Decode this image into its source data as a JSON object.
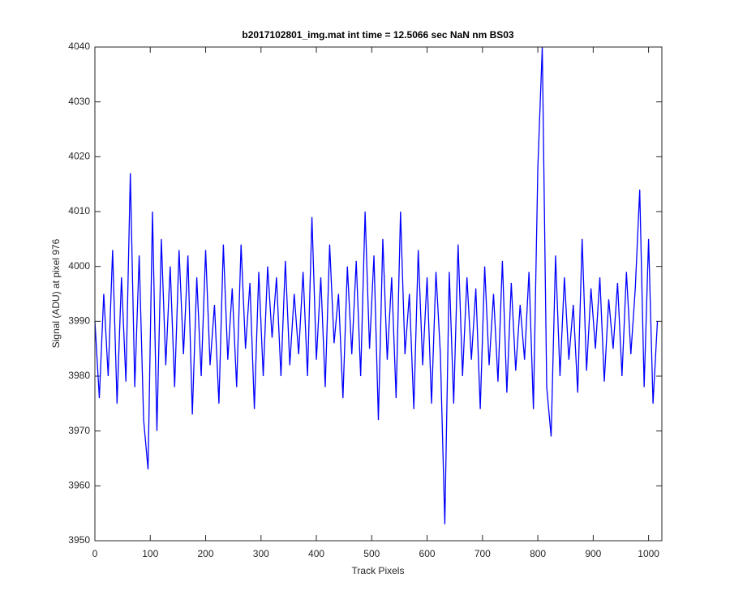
{
  "chart_data": {
    "type": "line",
    "title": "b2017102801_img.mat int time = 12.5066 sec  NaN nm BS03",
    "xlabel": "Track Pixels",
    "ylabel": "Signal (ADU) at pixel 976",
    "xlim": [
      0,
      1024
    ],
    "xticks": [
      0,
      100,
      200,
      300,
      400,
      500,
      600,
      700,
      800,
      900,
      1000
    ],
    "ylim": [
      3950,
      4040
    ],
    "yticks": [
      3950,
      3960,
      3970,
      3980,
      3990,
      4000,
      4010,
      4020,
      4030,
      4040
    ],
    "grid": false,
    "x": [
      0,
      8,
      16,
      24,
      32,
      40,
      48,
      56,
      64,
      72,
      80,
      88,
      96,
      104,
      112,
      120,
      128,
      136,
      144,
      152,
      160,
      168,
      176,
      184,
      192,
      200,
      208,
      216,
      224,
      232,
      240,
      248,
      256,
      264,
      272,
      280,
      288,
      296,
      304,
      312,
      320,
      328,
      336,
      344,
      352,
      360,
      368,
      376,
      384,
      392,
      400,
      408,
      416,
      424,
      432,
      440,
      448,
      456,
      464,
      472,
      480,
      488,
      496,
      504,
      512,
      520,
      528,
      536,
      544,
      552,
      560,
      568,
      576,
      584,
      592,
      600,
      608,
      616,
      624,
      632,
      640,
      648,
      656,
      664,
      672,
      680,
      688,
      696,
      704,
      712,
      720,
      728,
      736,
      744,
      752,
      760,
      768,
      776,
      784,
      792,
      800,
      808,
      816,
      824,
      832,
      840,
      848,
      856,
      864,
      872,
      880,
      888,
      896,
      904,
      912,
      920,
      928,
      936,
      944,
      952,
      960,
      968,
      976,
      984,
      992,
      1000,
      1008,
      1016
    ],
    "series": [
      {
        "color": "#0000ff",
        "values": [
          3990,
          3976,
          3995,
          3980,
          4003,
          3975,
          3998,
          3979,
          4017,
          3978,
          4002,
          3972,
          3963,
          4010,
          3970,
          4005,
          3982,
          4000,
          3978,
          4003,
          3984,
          4002,
          3973,
          3998,
          3980,
          4003,
          3982,
          3993,
          3975,
          4004,
          3983,
          3996,
          3978,
          4004,
          3985,
          3997,
          3974,
          3999,
          3980,
          4000,
          3987,
          3998,
          3980,
          4001,
          3982,
          3995,
          3984,
          3999,
          3980,
          4009,
          3983,
          3998,
          3978,
          4004,
          3986,
          3995,
          3976,
          4000,
          3984,
          4001,
          3980,
          4010,
          3985,
          4002,
          3972,
          4005,
          3983,
          3998,
          3976,
          4010,
          3984,
          3995,
          3974,
          4003,
          3982,
          3998,
          3975,
          3999,
          3984,
          3953,
          3999,
          3975,
          4004,
          3980,
          3998,
          3983,
          3996,
          3974,
          4000,
          3982,
          3995,
          3979,
          4001,
          3977,
          3997,
          3981,
          3993,
          3983,
          3999,
          3974,
          4018,
          4040,
          3978,
          3969,
          4002,
          3980,
          3998,
          3983,
          3993,
          3977,
          4005,
          3981,
          3996,
          3985,
          3998,
          3979,
          3994,
          3985,
          3997,
          3980,
          3999,
          3984,
          3996,
          4014,
          3978,
          4005,
          3975,
          3990
        ]
      }
    ]
  }
}
